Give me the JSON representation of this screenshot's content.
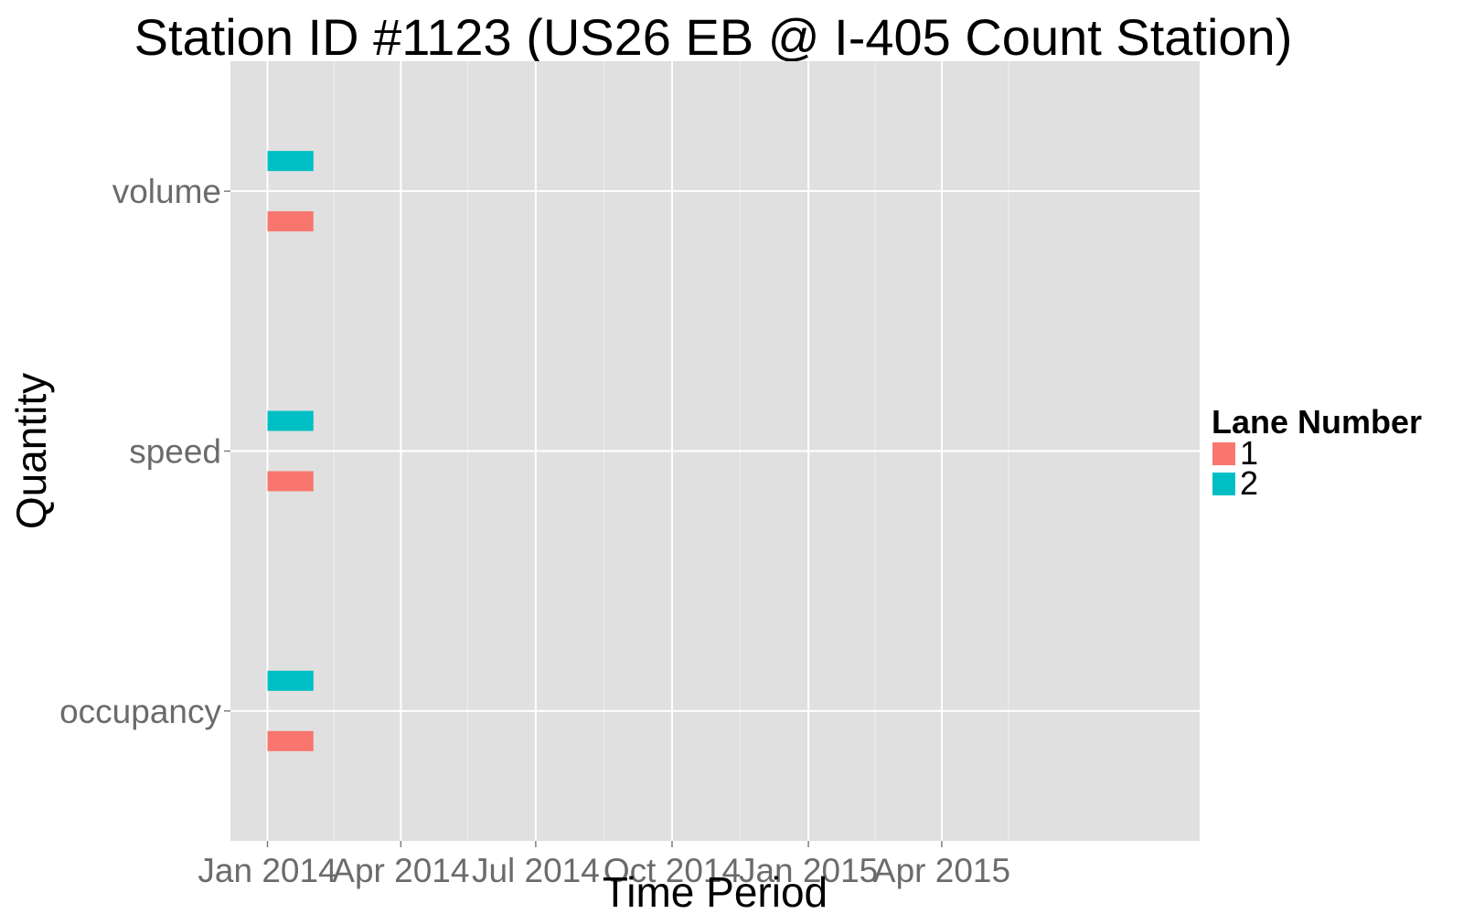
{
  "chart_data": {
    "type": "bar",
    "title": "Station ID #1123 (US26 EB @ I-405 Count Station)",
    "xlabel": "Time Period",
    "ylabel": "Quantity",
    "x_axis": {
      "scale": "date",
      "ticks": [
        {
          "label": "Jan 2014",
          "date": "2014-01-01"
        },
        {
          "label": "Apr 2014",
          "date": "2014-04-01"
        },
        {
          "label": "Jul 2014",
          "date": "2014-07-01"
        },
        {
          "label": "Oct 2014",
          "date": "2014-10-01"
        },
        {
          "label": "Jan 2015",
          "date": "2015-01-01"
        },
        {
          "label": "Apr 2015",
          "date": "2015-04-01"
        }
      ],
      "range": [
        "2013-12-07",
        "2015-09-22"
      ]
    },
    "categories": [
      "volume",
      "speed",
      "occupancy"
    ],
    "series": [
      {
        "name": "1",
        "color": "#F8766D",
        "segments": [
          {
            "category": "volume",
            "start": "2014-01-01",
            "end": "2014-02-01"
          },
          {
            "category": "speed",
            "start": "2014-01-01",
            "end": "2014-02-01"
          },
          {
            "category": "occupancy",
            "start": "2014-01-01",
            "end": "2014-02-01"
          }
        ]
      },
      {
        "name": "2",
        "color": "#00BFC4",
        "segments": [
          {
            "category": "volume",
            "start": "2014-01-01",
            "end": "2014-02-01"
          },
          {
            "category": "speed",
            "start": "2014-01-01",
            "end": "2014-02-01"
          },
          {
            "category": "occupancy",
            "start": "2014-01-01",
            "end": "2014-02-01"
          }
        ]
      }
    ],
    "legend": {
      "title": "Lane Number",
      "position": "right",
      "entries": [
        {
          "label": "1",
          "color": "#F8766D"
        },
        {
          "label": "2",
          "color": "#00BFC4"
        }
      ]
    },
    "grid": true,
    "panel_background": "#E0E0E0",
    "grid_color": "#FFFFFF",
    "colors": {
      "lane_1": "#F8766D",
      "lane_2": "#00BFC4"
    }
  }
}
